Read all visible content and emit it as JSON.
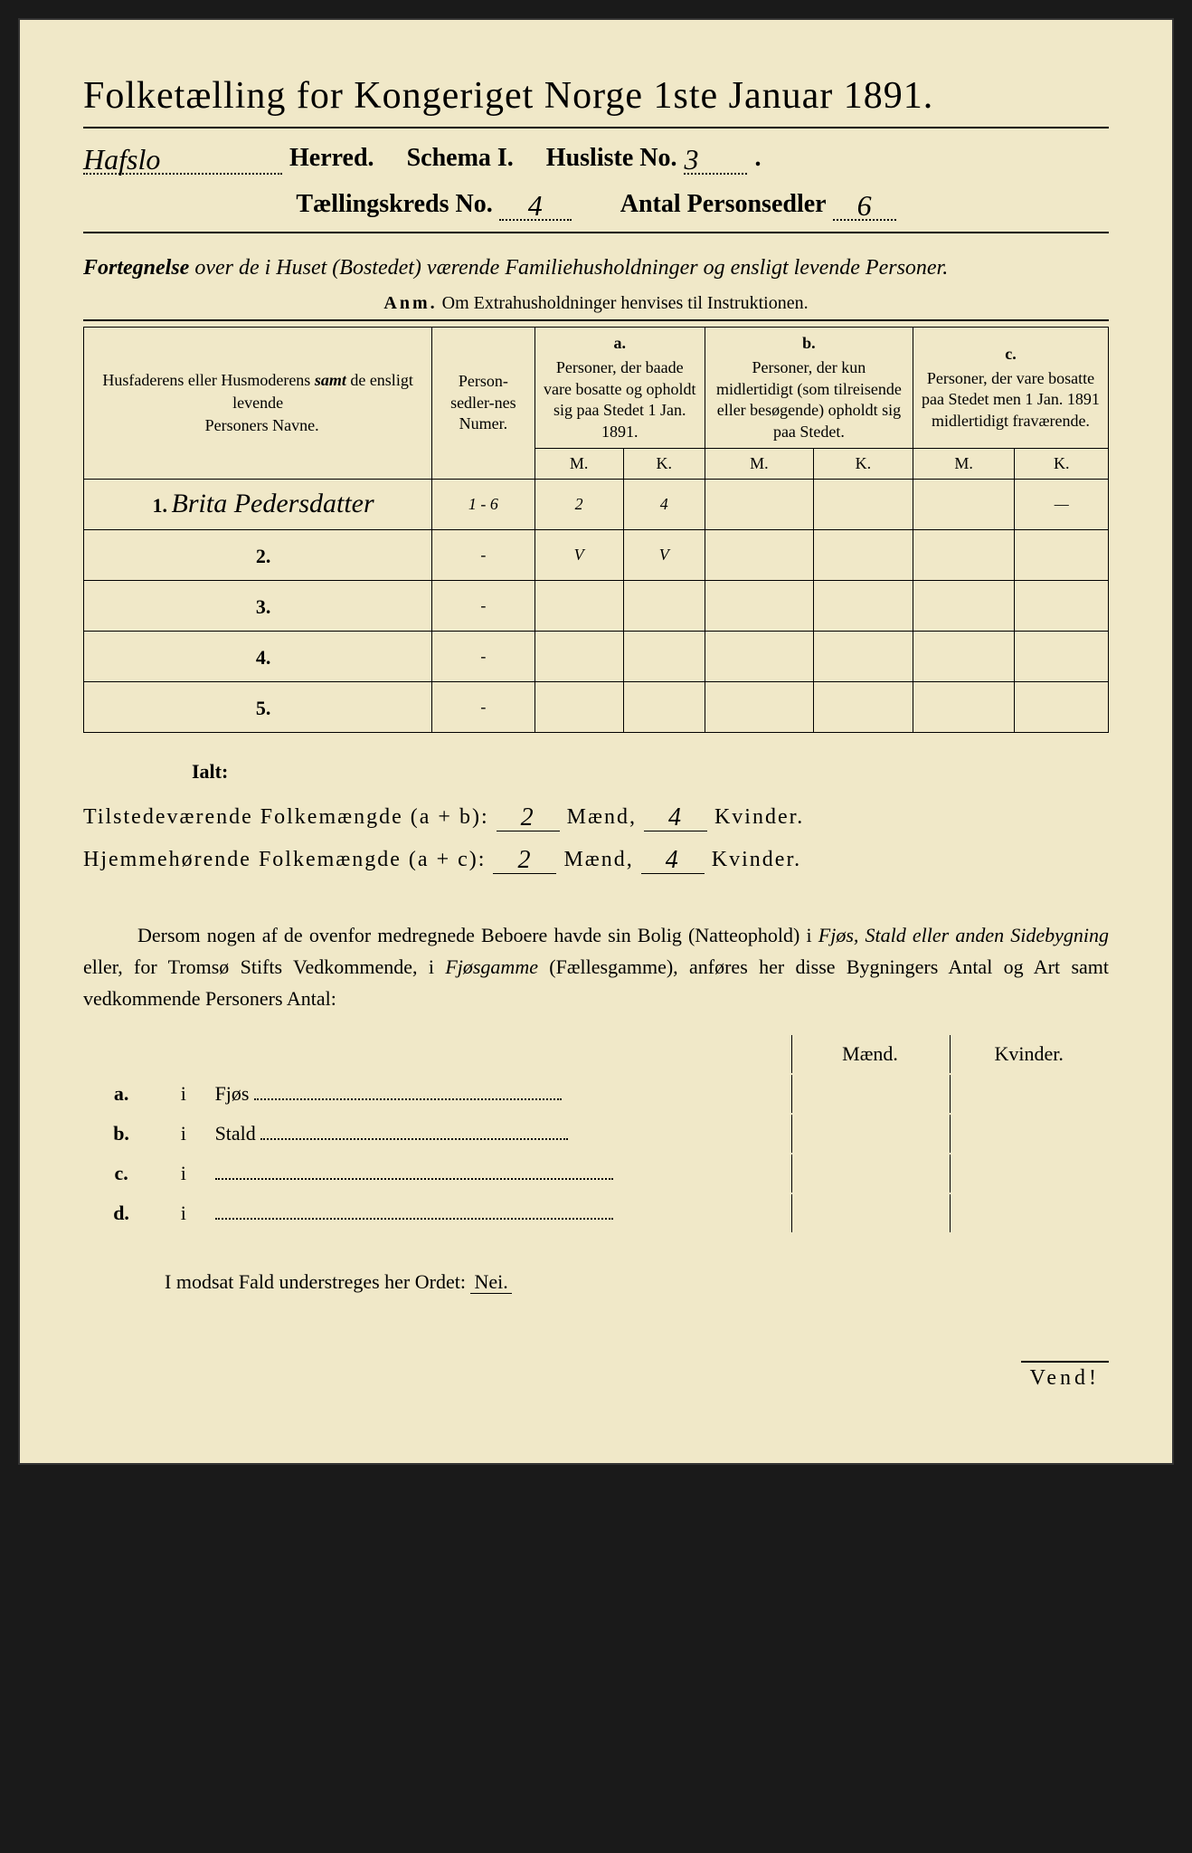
{
  "title": "Folketælling for Kongeriget Norge 1ste Januar 1891.",
  "header": {
    "herred_handwritten": "Hafslo",
    "herred_label": "Herred.",
    "schema_label": "Schema I.",
    "husliste_label": "Husliste No.",
    "husliste_no": "3",
    "kreds_label": "Tællingskreds No.",
    "kreds_no": "4",
    "antal_label": "Antal Personsedler",
    "antal_no": "6"
  },
  "subtitle": {
    "line1_bold": "Fortegnelse",
    "line1_italic": " over de i Huset (Bostedet) værende Familiehusholdninger og ensligt levende Personer.",
    "anm_label": "Anm.",
    "anm_text": "Om Extrahusholdninger henvises til Instruktionen."
  },
  "table_headers": {
    "name": "Husfaderens eller Husmoderens samt de ensligt levende Personers Navne.",
    "name_samt": "samt",
    "numer": "Person-sedler-nes Numer.",
    "a_letter": "a.",
    "a_text": "Personer, der baade vare bosatte og opholdt sig paa Stedet 1 Jan. 1891.",
    "b_letter": "b.",
    "b_text": "Personer, der kun midlertidigt (som tilreisende eller besøgende) opholdt sig paa Stedet.",
    "c_letter": "c.",
    "c_text": "Personer, der vare bosatte paa Stedet men 1 Jan. 1891 midlertidigt fraværende.",
    "m": "M.",
    "k": "K."
  },
  "rows": [
    {
      "num": "1.",
      "name": "Brita Pedersdatter",
      "sedler": "1 - 6",
      "a_m": "2",
      "a_k": "4",
      "b_m": "",
      "b_k": "",
      "c_m": "",
      "c_k": "—"
    },
    {
      "num": "2.",
      "name": "",
      "sedler": "-",
      "a_m": "V",
      "a_k": "V",
      "b_m": "",
      "b_k": "",
      "c_m": "",
      "c_k": ""
    },
    {
      "num": "3.",
      "name": "",
      "sedler": "-",
      "a_m": "",
      "a_k": "",
      "b_m": "",
      "b_k": "",
      "c_m": "",
      "c_k": ""
    },
    {
      "num": "4.",
      "name": "",
      "sedler": "-",
      "a_m": "",
      "a_k": "",
      "b_m": "",
      "b_k": "",
      "c_m": "",
      "c_k": ""
    },
    {
      "num": "5.",
      "name": "",
      "sedler": "-",
      "a_m": "",
      "a_k": "",
      "b_m": "",
      "b_k": "",
      "c_m": "",
      "c_k": ""
    }
  ],
  "ialt": "Ialt:",
  "totals": {
    "tilstede_label": "Tilstedeværende Folkemængde (a + b):",
    "hjemme_label": "Hjemmehørende Folkemængde (a + c):",
    "maend": "Mænd,",
    "kvinder": "Kvinder.",
    "tilstede_m": "2",
    "tilstede_k": "4",
    "hjemme_m": "2",
    "hjemme_k": "4"
  },
  "para": "Dersom nogen af de ovenfor medregnede Beboere havde sin Bolig (Natteophold) i Fjøs, Stald eller anden Sidebygning eller, for Tromsø Stifts Vedkommende, i Fjøsgamme (Fællesgamme), anføres her disse Bygningers Antal og Art samt vedkommende Personers Antal:",
  "para_italic_1": "Fjøs, Stald eller anden Sidebygning",
  "para_italic_2": "Fjøsgamme",
  "buildings": {
    "maend": "Mænd.",
    "kvinder": "Kvinder.",
    "rows": [
      {
        "label": "a.",
        "i": "i",
        "name": "Fjøs"
      },
      {
        "label": "b.",
        "i": "i",
        "name": "Stald"
      },
      {
        "label": "c.",
        "i": "i",
        "name": ""
      },
      {
        "label": "d.",
        "i": "i",
        "name": ""
      }
    ]
  },
  "modsat": {
    "text": "I modsat Fald understreges her Ordet:",
    "nei": "Nei."
  },
  "vend": "Vend!"
}
